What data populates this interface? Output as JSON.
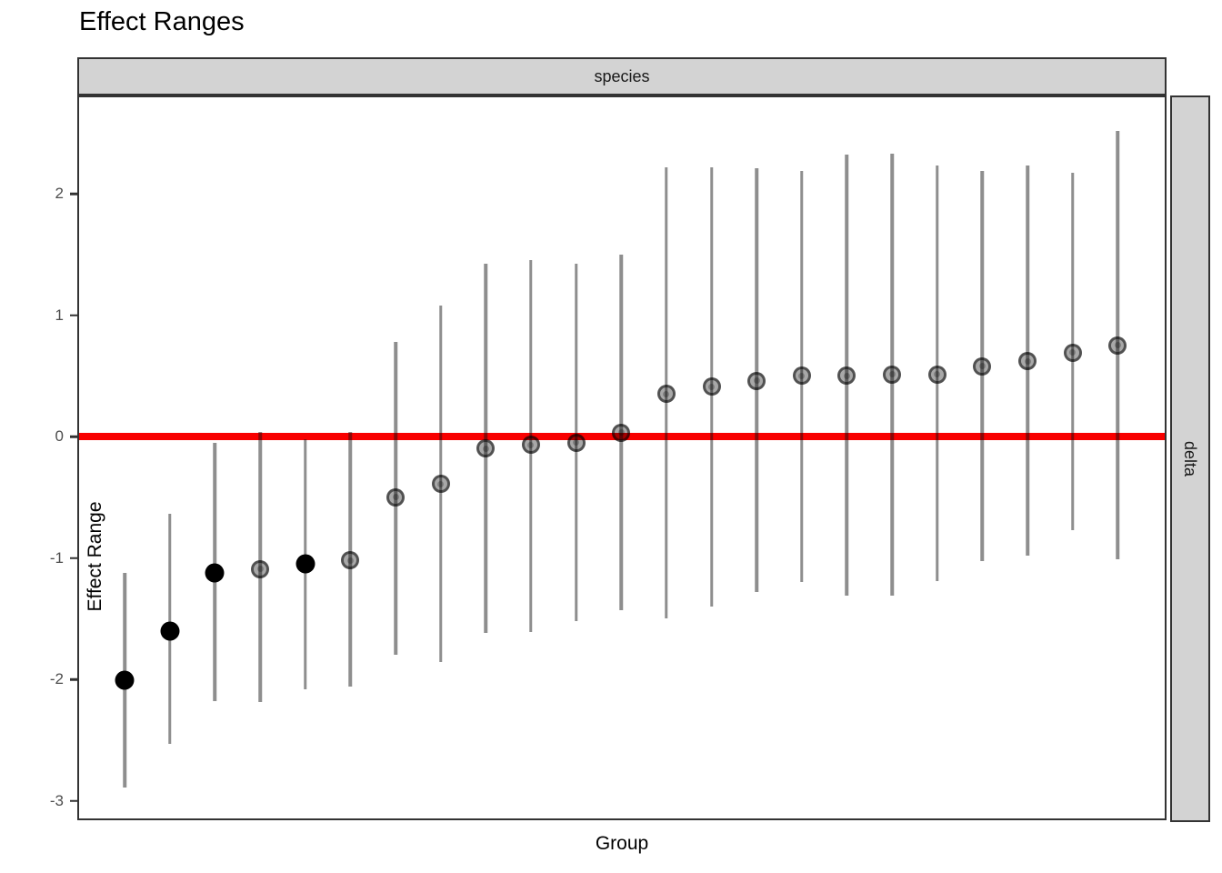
{
  "title": "Effect Ranges",
  "facet": {
    "top_strip_label": "species",
    "right_strip_label": "delta"
  },
  "axes": {
    "x_title": "Group",
    "y_title": "Effect Range",
    "y_tick_labels": [
      "2",
      "1",
      "0",
      "-1",
      "-2",
      "-3"
    ]
  },
  "colors": {
    "reference_line": "#f80000",
    "strip_background": "#d3d3d3",
    "panel_border": "#333333",
    "significant_point": "#000000",
    "interval_gray": "#8a8a8a"
  },
  "chart_data": {
    "type": "scatter",
    "title": "Effect Ranges",
    "xlabel": "Group",
    "ylabel": "Effect Range",
    "facet_top": "species",
    "facet_right": "delta",
    "reference_line_y": 0,
    "ylim": [
      -3.16,
      2.82
    ],
    "y_ticks": [
      2,
      1,
      0,
      -1,
      -2,
      -3
    ],
    "grid": false,
    "n_groups": 23,
    "legend": "none",
    "series": [
      {
        "group": 1,
        "estimate": -2.01,
        "lower": -2.89,
        "upper": -1.12,
        "significant": true
      },
      {
        "group": 2,
        "estimate": -1.6,
        "lower": -2.53,
        "upper": -0.64,
        "significant": true
      },
      {
        "group": 3,
        "estimate": -1.12,
        "lower": -2.18,
        "upper": -0.05,
        "significant": true
      },
      {
        "group": 4,
        "estimate": -1.09,
        "lower": -2.19,
        "upper": 0.04,
        "significant": false
      },
      {
        "group": 5,
        "estimate": -1.05,
        "lower": -2.08,
        "upper": -0.02,
        "significant": true
      },
      {
        "group": 6,
        "estimate": -1.02,
        "lower": -2.06,
        "upper": 0.04,
        "significant": false
      },
      {
        "group": 7,
        "estimate": -0.5,
        "lower": -1.8,
        "upper": 0.78,
        "significant": false
      },
      {
        "group": 8,
        "estimate": -0.39,
        "lower": -1.86,
        "upper": 1.08,
        "significant": false
      },
      {
        "group": 9,
        "estimate": -0.1,
        "lower": -1.62,
        "upper": 1.42,
        "significant": false
      },
      {
        "group": 10,
        "estimate": -0.07,
        "lower": -1.61,
        "upper": 1.45,
        "significant": false
      },
      {
        "group": 11,
        "estimate": -0.05,
        "lower": -1.52,
        "upper": 1.42,
        "significant": false
      },
      {
        "group": 12,
        "estimate": 0.03,
        "lower": -1.43,
        "upper": 1.5,
        "significant": false
      },
      {
        "group": 13,
        "estimate": 0.35,
        "lower": -1.5,
        "upper": 2.22,
        "significant": false
      },
      {
        "group": 14,
        "estimate": 0.41,
        "lower": -1.4,
        "upper": 2.22,
        "significant": false
      },
      {
        "group": 15,
        "estimate": 0.46,
        "lower": -1.28,
        "upper": 2.21,
        "significant": false
      },
      {
        "group": 16,
        "estimate": 0.5,
        "lower": -1.2,
        "upper": 2.19,
        "significant": false
      },
      {
        "group": 17,
        "estimate": 0.5,
        "lower": -1.31,
        "upper": 2.32,
        "significant": false
      },
      {
        "group": 18,
        "estimate": 0.51,
        "lower": -1.31,
        "upper": 2.33,
        "significant": false
      },
      {
        "group": 19,
        "estimate": 0.51,
        "lower": -1.19,
        "upper": 2.23,
        "significant": false
      },
      {
        "group": 20,
        "estimate": 0.58,
        "lower": -1.03,
        "upper": 2.19,
        "significant": false
      },
      {
        "group": 21,
        "estimate": 0.62,
        "lower": -0.98,
        "upper": 2.23,
        "significant": false
      },
      {
        "group": 22,
        "estimate": 0.69,
        "lower": -0.77,
        "upper": 2.17,
        "significant": false
      },
      {
        "group": 23,
        "estimate": 0.75,
        "lower": -1.01,
        "upper": 2.52,
        "significant": false
      }
    ]
  }
}
